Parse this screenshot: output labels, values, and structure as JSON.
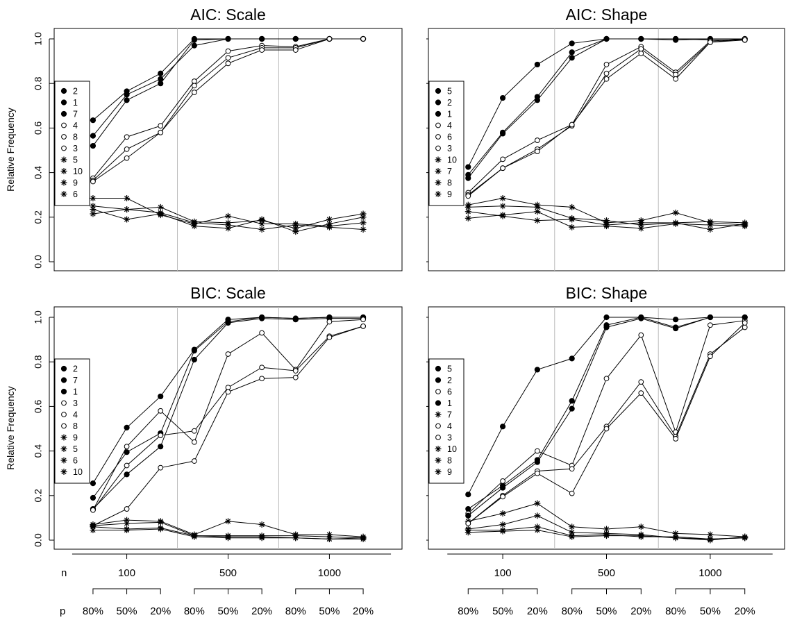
{
  "figure": {
    "y_axis_label": "Relative Frequency",
    "y_ticks": [
      "0.0",
      "0.2",
      "0.4",
      "0.6",
      "0.8",
      "1.0"
    ],
    "n_label": "n",
    "n_values": [
      "100",
      "500",
      "1000"
    ],
    "p_label": "p",
    "p_values": [
      "80%",
      "50%",
      "20%",
      "80%",
      "50%",
      "20%",
      "80%",
      "50%",
      "20%"
    ]
  },
  "chart_data": [
    {
      "type": "line",
      "title": "AIC: Scale",
      "ylabel": "Relative Frequency",
      "ylim": [
        0,
        1
      ],
      "x_groups": [
        "n=100 p=80%",
        "n=100 p=50%",
        "n=100 p=20%",
        "n=500 p=80%",
        "n=500 p=50%",
        "n=500 p=20%",
        "n=1000 p=80%",
        "n=1000 p=50%",
        "n=1000 p=20%"
      ],
      "legend_position": "left",
      "series": [
        {
          "name": "2",
          "marker": "filled",
          "values": [
            0.635,
            0.765,
            0.845,
            1.0,
            1.0,
            1.0,
            1.0,
            1.0,
            1.0
          ]
        },
        {
          "name": "1",
          "marker": "filled",
          "values": [
            0.565,
            0.75,
            0.82,
            0.97,
            1.0,
            1.0,
            1.0,
            1.0,
            1.0
          ]
        },
        {
          "name": "7",
          "marker": "filled",
          "values": [
            0.52,
            0.725,
            0.8,
            0.995,
            1.0,
            1.0,
            1.0,
            1.0,
            1.0
          ]
        },
        {
          "name": "4",
          "marker": "open",
          "values": [
            0.375,
            0.56,
            0.61,
            0.81,
            0.945,
            0.97,
            0.965,
            1.0,
            1.0
          ]
        },
        {
          "name": "8",
          "marker": "open",
          "values": [
            0.365,
            0.505,
            0.58,
            0.79,
            0.915,
            0.96,
            0.96,
            1.0,
            1.0
          ]
        },
        {
          "name": "3",
          "marker": "open",
          "values": [
            0.36,
            0.465,
            0.58,
            0.76,
            0.89,
            0.95,
            0.95,
            1.0,
            1.0
          ]
        },
        {
          "name": "5",
          "marker": "star",
          "values": [
            0.285,
            0.285,
            0.21,
            0.17,
            0.205,
            0.17,
            0.17,
            0.16,
            0.175
          ]
        },
        {
          "name": "10",
          "marker": "star",
          "values": [
            0.25,
            0.235,
            0.245,
            0.18,
            0.175,
            0.185,
            0.15,
            0.19,
            0.215
          ]
        },
        {
          "name": "9",
          "marker": "star",
          "values": [
            0.235,
            0.19,
            0.215,
            0.16,
            0.15,
            0.19,
            0.135,
            0.17,
            0.2
          ]
        },
        {
          "name": "6",
          "marker": "star",
          "values": [
            0.215,
            0.235,
            0.22,
            0.175,
            0.165,
            0.145,
            0.165,
            0.155,
            0.145
          ]
        }
      ]
    },
    {
      "type": "line",
      "title": "AIC: Shape",
      "ylabel": "",
      "ylim": [
        0,
        1
      ],
      "x_groups": [
        "n=100 p=80%",
        "n=100 p=50%",
        "n=100 p=20%",
        "n=500 p=80%",
        "n=500 p=50%",
        "n=500 p=20%",
        "n=1000 p=80%",
        "n=1000 p=50%",
        "n=1000 p=20%"
      ],
      "legend_position": "left",
      "series": [
        {
          "name": "5",
          "marker": "filled",
          "values": [
            0.425,
            0.735,
            0.885,
            0.98,
            1.0,
            1.0,
            1.0,
            1.0,
            1.0
          ]
        },
        {
          "name": "2",
          "marker": "filled",
          "values": [
            0.39,
            0.58,
            0.74,
            0.94,
            1.0,
            1.0,
            0.995,
            1.0,
            1.0
          ]
        },
        {
          "name": "1",
          "marker": "filled",
          "values": [
            0.375,
            0.575,
            0.725,
            0.915,
            1.0,
            1.0,
            1.0,
            0.995,
            0.995
          ]
        },
        {
          "name": "4",
          "marker": "open",
          "values": [
            0.31,
            0.46,
            0.545,
            0.615,
            0.885,
            0.965,
            0.85,
            0.99,
            1.0
          ]
        },
        {
          "name": "6",
          "marker": "open",
          "values": [
            0.3,
            0.42,
            0.505,
            0.61,
            0.845,
            0.955,
            0.84,
            0.985,
            1.0
          ]
        },
        {
          "name": "3",
          "marker": "open",
          "values": [
            0.295,
            0.42,
            0.495,
            0.615,
            0.82,
            0.935,
            0.82,
            0.985,
            0.995
          ]
        },
        {
          "name": "10",
          "marker": "star",
          "values": [
            0.255,
            0.285,
            0.255,
            0.245,
            0.175,
            0.185,
            0.22,
            0.175,
            0.165
          ]
        },
        {
          "name": "7",
          "marker": "star",
          "values": [
            0.245,
            0.25,
            0.245,
            0.195,
            0.185,
            0.165,
            0.175,
            0.18,
            0.175
          ]
        },
        {
          "name": "8",
          "marker": "star",
          "values": [
            0.225,
            0.205,
            0.185,
            0.19,
            0.165,
            0.175,
            0.175,
            0.145,
            0.17
          ]
        },
        {
          "name": "9",
          "marker": "star",
          "values": [
            0.195,
            0.21,
            0.225,
            0.155,
            0.16,
            0.15,
            0.17,
            0.165,
            0.16
          ]
        }
      ]
    },
    {
      "type": "line",
      "title": "BIC: Scale",
      "ylabel": "Relative Frequency",
      "ylim": [
        0,
        1
      ],
      "x_groups": [
        "n=100 p=80%",
        "n=100 p=50%",
        "n=100 p=20%",
        "n=500 p=80%",
        "n=500 p=50%",
        "n=500 p=20%",
        "n=1000 p=80%",
        "n=1000 p=50%",
        "n=1000 p=20%"
      ],
      "legend_position": "left",
      "series": [
        {
          "name": "2",
          "marker": "filled",
          "values": [
            0.255,
            0.505,
            0.645,
            0.855,
            0.99,
            1.0,
            0.995,
            1.0,
            1.0
          ]
        },
        {
          "name": "7",
          "marker": "filled",
          "values": [
            0.19,
            0.395,
            0.48,
            0.85,
            0.98,
            1.0,
            0.995,
            1.0,
            1.0
          ]
        },
        {
          "name": "1",
          "marker": "filled",
          "values": [
            0.14,
            0.295,
            0.42,
            0.81,
            0.975,
            0.995,
            0.99,
            0.995,
            0.995
          ]
        },
        {
          "name": "3",
          "marker": "open",
          "values": [
            0.135,
            0.42,
            0.58,
            0.44,
            0.835,
            0.93,
            0.765,
            0.98,
            0.99
          ]
        },
        {
          "name": "4",
          "marker": "open",
          "values": [
            0.135,
            0.335,
            0.47,
            0.49,
            0.685,
            0.775,
            0.76,
            0.915,
            0.96
          ]
        },
        {
          "name": "8",
          "marker": "open",
          "values": [
            0.065,
            0.14,
            0.325,
            0.355,
            0.665,
            0.725,
            0.73,
            0.91,
            0.96
          ]
        },
        {
          "name": "9",
          "marker": "star",
          "values": [
            0.07,
            0.09,
            0.085,
            0.025,
            0.085,
            0.07,
            0.025,
            0.025,
            0.015
          ]
        },
        {
          "name": "5",
          "marker": "star",
          "values": [
            0.065,
            0.075,
            0.08,
            0.02,
            0.02,
            0.02,
            0.02,
            0.015,
            0.01
          ]
        },
        {
          "name": "6",
          "marker": "star",
          "values": [
            0.06,
            0.05,
            0.055,
            0.02,
            0.015,
            0.015,
            0.01,
            0.005,
            0.01
          ]
        },
        {
          "name": "10",
          "marker": "star",
          "values": [
            0.045,
            0.045,
            0.05,
            0.015,
            0.01,
            0.01,
            0.01,
            0.005,
            0.005
          ]
        }
      ]
    },
    {
      "type": "line",
      "title": "BIC: Shape",
      "ylabel": "",
      "ylim": [
        0,
        1
      ],
      "x_groups": [
        "n=100 p=80%",
        "n=100 p=50%",
        "n=100 p=20%",
        "n=500 p=80%",
        "n=500 p=50%",
        "n=500 p=20%",
        "n=1000 p=80%",
        "n=1000 p=50%",
        "n=1000 p=20%"
      ],
      "legend_position": "left",
      "series": [
        {
          "name": "5",
          "marker": "filled",
          "values": [
            0.205,
            0.51,
            0.765,
            0.815,
            1.0,
            1.0,
            0.99,
            1.0,
            1.0
          ]
        },
        {
          "name": "2",
          "marker": "filled",
          "values": [
            0.14,
            0.245,
            0.36,
            0.625,
            0.965,
            1.0,
            0.955,
            1.0,
            1.0
          ]
        },
        {
          "name": "6",
          "marker": "open",
          "values": [
            0.12,
            0.265,
            0.4,
            0.335,
            0.725,
            0.92,
            0.485,
            0.965,
            0.985
          ]
        },
        {
          "name": "1",
          "marker": "filled",
          "values": [
            0.11,
            0.235,
            0.35,
            0.59,
            0.955,
            0.995,
            0.95,
            1.0,
            1.0
          ]
        },
        {
          "name": "7",
          "marker": "star",
          "values": [
            0.085,
            0.12,
            0.165,
            0.06,
            0.05,
            0.06,
            0.03,
            0.025,
            0.015
          ]
        },
        {
          "name": "4",
          "marker": "open",
          "values": [
            0.075,
            0.2,
            0.31,
            0.32,
            0.51,
            0.71,
            0.465,
            0.835,
            0.955
          ]
        },
        {
          "name": "3",
          "marker": "open",
          "values": [
            0.075,
            0.195,
            0.3,
            0.21,
            0.5,
            0.66,
            0.455,
            0.825,
            0.975
          ]
        },
        {
          "name": "10",
          "marker": "star",
          "values": [
            0.05,
            0.07,
            0.11,
            0.035,
            0.03,
            0.025,
            0.01,
            0.005,
            0.01
          ]
        },
        {
          "name": "8",
          "marker": "star",
          "values": [
            0.045,
            0.045,
            0.06,
            0.02,
            0.025,
            0.015,
            0.015,
            0.005,
            0.01
          ]
        },
        {
          "name": "9",
          "marker": "star",
          "values": [
            0.035,
            0.04,
            0.045,
            0.015,
            0.02,
            0.02,
            0.01,
            0.0,
            0.015
          ]
        }
      ]
    }
  ]
}
